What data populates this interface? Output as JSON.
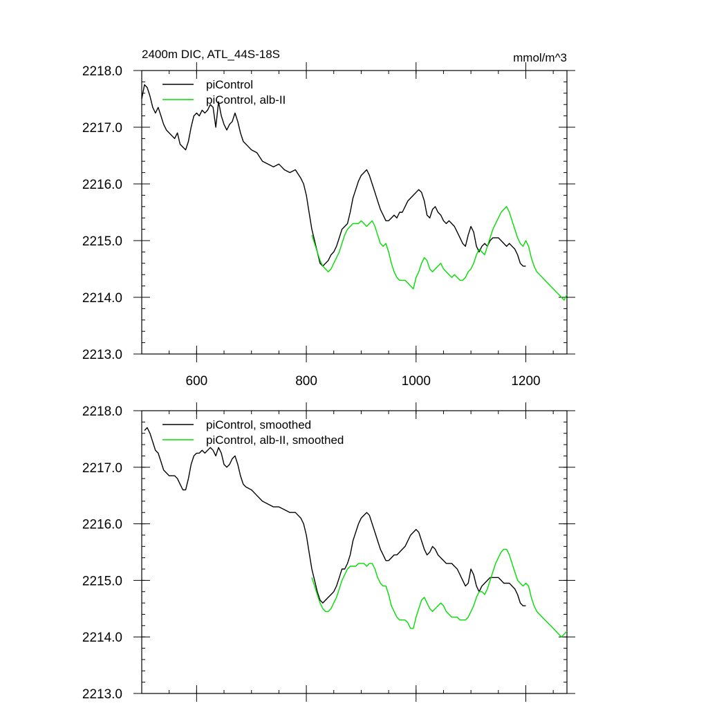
{
  "chart_data": [
    {
      "type": "line",
      "title": "2400m DIC, ATL_44S-18S",
      "units": "mmol/m^3",
      "xlim": [
        500,
        1275
      ],
      "ylim": [
        2213.0,
        2218.0
      ],
      "xticks": [
        600,
        800,
        1000,
        1200
      ],
      "xtick_labels": [
        "600",
        "800",
        "1000",
        "1200"
      ],
      "yticks": [
        2213.0,
        2214.0,
        2215.0,
        2216.0,
        2217.0,
        2218.0
      ],
      "ytick_labels": [
        "2213.0",
        "2214.0",
        "2215.0",
        "2216.0",
        "2217.0",
        "2218.0"
      ],
      "legend_position": "top-left",
      "series": [
        {
          "name": "piControl",
          "color": "#000000",
          "x": [
            500,
            505,
            510,
            515,
            520,
            525,
            530,
            535,
            540,
            545,
            550,
            555,
            560,
            565,
            570,
            575,
            580,
            585,
            590,
            595,
            600,
            605,
            610,
            615,
            620,
            625,
            630,
            635,
            640,
            645,
            650,
            655,
            660,
            665,
            670,
            675,
            680,
            685,
            690,
            695,
            700,
            710,
            720,
            730,
            740,
            750,
            760,
            770,
            780,
            790,
            795,
            800,
            805,
            810,
            815,
            820,
            825,
            830,
            835,
            840,
            845,
            850,
            855,
            860,
            865,
            870,
            875,
            880,
            885,
            890,
            895,
            900,
            905,
            910,
            915,
            920,
            925,
            930,
            935,
            940,
            945,
            950,
            955,
            960,
            965,
            970,
            975,
            980,
            985,
            990,
            995,
            1000,
            1005,
            1010,
            1015,
            1020,
            1025,
            1030,
            1035,
            1040,
            1045,
            1050,
            1055,
            1060,
            1065,
            1070,
            1075,
            1080,
            1085,
            1090,
            1095,
            1100,
            1105,
            1110,
            1115,
            1120,
            1125,
            1130,
            1135,
            1140,
            1145,
            1150,
            1155,
            1160,
            1165,
            1170,
            1175,
            1180,
            1185,
            1190,
            1195,
            1200
          ],
          "y": [
            2217.5,
            2217.75,
            2217.7,
            2217.55,
            2217.35,
            2217.25,
            2217.35,
            2217.2,
            2217.05,
            2216.95,
            2216.9,
            2216.85,
            2216.8,
            2216.9,
            2216.7,
            2216.65,
            2216.6,
            2216.75,
            2217.0,
            2217.2,
            2217.25,
            2217.2,
            2217.3,
            2217.25,
            2217.3,
            2217.4,
            2217.35,
            2217.0,
            2217.45,
            2217.2,
            2217.05,
            2216.95,
            2217.05,
            2217.1,
            2217.25,
            2217.1,
            2216.9,
            2216.75,
            2216.7,
            2216.65,
            2216.6,
            2216.55,
            2216.4,
            2216.35,
            2216.3,
            2216.35,
            2216.25,
            2216.2,
            2216.25,
            2216.1,
            2216.0,
            2215.8,
            2215.5,
            2215.2,
            2215.0,
            2214.8,
            2214.6,
            2214.55,
            2214.6,
            2214.65,
            2214.75,
            2214.8,
            2214.9,
            2215.05,
            2215.2,
            2215.25,
            2215.3,
            2215.5,
            2215.75,
            2215.9,
            2216.05,
            2216.15,
            2216.2,
            2216.25,
            2216.15,
            2216.0,
            2215.85,
            2215.7,
            2215.55,
            2215.45,
            2215.35,
            2215.35,
            2215.4,
            2215.45,
            2215.4,
            2215.5,
            2215.5,
            2215.6,
            2215.7,
            2215.75,
            2215.8,
            2215.85,
            2215.9,
            2215.85,
            2215.7,
            2215.45,
            2215.4,
            2215.55,
            2215.6,
            2215.5,
            2215.45,
            2215.35,
            2215.3,
            2215.35,
            2215.3,
            2215.25,
            2215.15,
            2215.05,
            2214.95,
            2214.9,
            2215.1,
            2215.25,
            2215.15,
            2214.9,
            2214.8,
            2214.9,
            2214.95,
            2214.9,
            2215.0,
            2215.05,
            2215.05,
            2215.05,
            2215.0,
            2214.95,
            2214.9,
            2214.95,
            2214.9,
            2214.85,
            2214.75,
            2214.6,
            2214.55,
            2214.55
          ]
        },
        {
          "name": "piControl, alb-II",
          "color": "#00dd00",
          "x": [
            810,
            815,
            820,
            825,
            830,
            835,
            840,
            845,
            850,
            855,
            860,
            865,
            870,
            875,
            880,
            885,
            890,
            895,
            900,
            905,
            910,
            915,
            920,
            925,
            930,
            935,
            940,
            945,
            950,
            955,
            960,
            965,
            970,
            975,
            980,
            985,
            990,
            995,
            1000,
            1005,
            1010,
            1015,
            1020,
            1025,
            1030,
            1035,
            1040,
            1045,
            1050,
            1055,
            1060,
            1065,
            1070,
            1075,
            1080,
            1085,
            1090,
            1095,
            1100,
            1105,
            1110,
            1115,
            1120,
            1125,
            1130,
            1135,
            1140,
            1145,
            1150,
            1155,
            1160,
            1165,
            1170,
            1175,
            1180,
            1185,
            1190,
            1195,
            1200,
            1205,
            1210,
            1215,
            1220,
            1225,
            1230,
            1235,
            1240,
            1245,
            1250,
            1255,
            1260,
            1265,
            1270,
            1275
          ],
          "y": [
            2215.1,
            2214.95,
            2214.8,
            2214.65,
            2214.55,
            2214.5,
            2214.45,
            2214.5,
            2214.6,
            2214.7,
            2214.8,
            2214.95,
            2215.1,
            2215.2,
            2215.25,
            2215.3,
            2215.3,
            2215.3,
            2215.35,
            2215.3,
            2215.25,
            2215.3,
            2215.35,
            2215.25,
            2215.1,
            2214.95,
            2214.9,
            2214.95,
            2214.8,
            2214.6,
            2214.45,
            2214.35,
            2214.3,
            2214.3,
            2214.3,
            2214.25,
            2214.2,
            2214.15,
            2214.35,
            2214.45,
            2214.6,
            2214.7,
            2214.65,
            2214.5,
            2214.45,
            2214.5,
            2214.55,
            2214.6,
            2214.5,
            2214.45,
            2214.4,
            2214.35,
            2214.4,
            2214.35,
            2214.3,
            2214.3,
            2214.35,
            2214.45,
            2214.5,
            2214.6,
            2214.75,
            2214.85,
            2214.8,
            2214.75,
            2214.9,
            2215.05,
            2215.2,
            2215.3,
            2215.4,
            2215.5,
            2215.55,
            2215.6,
            2215.5,
            2215.35,
            2215.2,
            2215.05,
            2214.95,
            2214.9,
            2215.0,
            2214.9,
            2214.7,
            2214.55,
            2214.45,
            2214.4,
            2214.35,
            2214.3,
            2214.25,
            2214.2,
            2214.15,
            2214.1,
            2214.05,
            2214.0,
            2213.95,
            2214.05
          ]
        }
      ]
    },
    {
      "type": "line",
      "xlim": [
        500,
        1275
      ],
      "ylim": [
        2213.0,
        2218.0
      ],
      "xticks": [
        600,
        800,
        1000,
        1200
      ],
      "yticks": [
        2213.0,
        2214.0,
        2215.0,
        2216.0,
        2217.0,
        2218.0
      ],
      "ytick_labels": [
        "2213.0",
        "2214.0",
        "2215.0",
        "2216.0",
        "2217.0",
        "2218.0"
      ],
      "legend_position": "top-left",
      "series": [
        {
          "name": "piControl, smoothed",
          "color": "#000000",
          "x": [
            505,
            510,
            515,
            520,
            525,
            530,
            535,
            540,
            545,
            550,
            555,
            560,
            565,
            570,
            575,
            580,
            585,
            590,
            595,
            600,
            605,
            610,
            615,
            620,
            625,
            630,
            635,
            640,
            645,
            650,
            655,
            660,
            665,
            670,
            675,
            680,
            685,
            690,
            700,
            710,
            720,
            730,
            740,
            750,
            760,
            770,
            780,
            790,
            795,
            800,
            805,
            810,
            815,
            820,
            825,
            830,
            835,
            840,
            845,
            850,
            855,
            860,
            865,
            870,
            875,
            880,
            885,
            890,
            895,
            900,
            905,
            910,
            915,
            920,
            925,
            930,
            935,
            940,
            945,
            950,
            955,
            960,
            965,
            970,
            975,
            980,
            985,
            990,
            995,
            1000,
            1005,
            1010,
            1015,
            1020,
            1025,
            1030,
            1035,
            1040,
            1045,
            1050,
            1055,
            1060,
            1065,
            1070,
            1075,
            1080,
            1085,
            1090,
            1095,
            1100,
            1105,
            1110,
            1115,
            1120,
            1125,
            1130,
            1135,
            1140,
            1145,
            1150,
            1155,
            1160,
            1165,
            1170,
            1175,
            1180,
            1185,
            1190,
            1195,
            1200
          ],
          "y": [
            2217.65,
            2217.7,
            2217.6,
            2217.45,
            2217.3,
            2217.25,
            2217.1,
            2216.95,
            2216.9,
            2216.85,
            2216.85,
            2216.85,
            2216.8,
            2216.7,
            2216.6,
            2216.6,
            2216.8,
            2217.05,
            2217.2,
            2217.25,
            2217.25,
            2217.3,
            2217.25,
            2217.3,
            2217.35,
            2217.3,
            2217.2,
            2217.35,
            2217.25,
            2217.05,
            2217.0,
            2217.05,
            2217.15,
            2217.2,
            2217.05,
            2216.85,
            2216.7,
            2216.65,
            2216.6,
            2216.5,
            2216.4,
            2216.35,
            2216.3,
            2216.3,
            2216.25,
            2216.2,
            2216.2,
            2216.1,
            2216.0,
            2215.8,
            2215.5,
            2215.2,
            2215.0,
            2214.8,
            2214.65,
            2214.6,
            2214.65,
            2214.7,
            2214.75,
            2214.8,
            2214.9,
            2215.05,
            2215.2,
            2215.2,
            2215.3,
            2215.45,
            2215.7,
            2215.85,
            2216.0,
            2216.1,
            2216.15,
            2216.2,
            2216.15,
            2216.0,
            2215.85,
            2215.7,
            2215.55,
            2215.45,
            2215.35,
            2215.35,
            2215.4,
            2215.45,
            2215.45,
            2215.5,
            2215.55,
            2215.6,
            2215.7,
            2215.8,
            2215.85,
            2215.9,
            2215.85,
            2215.7,
            2215.55,
            2215.45,
            2215.5,
            2215.6,
            2215.55,
            2215.45,
            2215.4,
            2215.35,
            2215.3,
            2215.3,
            2215.3,
            2215.25,
            2215.2,
            2215.1,
            2215.0,
            2214.9,
            2214.95,
            2215.2,
            2215.1,
            2214.9,
            2214.8,
            2214.9,
            2214.95,
            2215.0,
            2215.05,
            2215.05,
            2215.05,
            2215.05,
            2215.0,
            2214.95,
            2214.95,
            2214.95,
            2214.9,
            2214.85,
            2214.75,
            2214.6,
            2214.55,
            2214.55
          ]
        },
        {
          "name": "piControl, alb-II, smoothed",
          "color": "#00dd00",
          "x": [
            810,
            815,
            820,
            825,
            830,
            835,
            840,
            845,
            850,
            855,
            860,
            865,
            870,
            875,
            880,
            885,
            890,
            895,
            900,
            905,
            910,
            915,
            920,
            925,
            930,
            935,
            940,
            945,
            950,
            955,
            960,
            965,
            970,
            975,
            980,
            985,
            990,
            995,
            1000,
            1005,
            1010,
            1015,
            1020,
            1025,
            1030,
            1035,
            1040,
            1045,
            1050,
            1055,
            1060,
            1065,
            1070,
            1075,
            1080,
            1085,
            1090,
            1095,
            1100,
            1105,
            1110,
            1115,
            1120,
            1125,
            1130,
            1135,
            1140,
            1145,
            1150,
            1155,
            1160,
            1165,
            1170,
            1175,
            1180,
            1185,
            1190,
            1195,
            1200,
            1205,
            1210,
            1215,
            1220,
            1225,
            1230,
            1235,
            1240,
            1245,
            1250,
            1255,
            1260,
            1265,
            1270,
            1275
          ],
          "y": [
            2215.05,
            2214.9,
            2214.75,
            2214.6,
            2214.5,
            2214.45,
            2214.45,
            2214.5,
            2214.6,
            2214.7,
            2214.85,
            2215.0,
            2215.1,
            2215.2,
            2215.25,
            2215.25,
            2215.25,
            2215.3,
            2215.3,
            2215.3,
            2215.25,
            2215.3,
            2215.3,
            2215.2,
            2215.05,
            2214.95,
            2214.9,
            2214.9,
            2214.75,
            2214.55,
            2214.45,
            2214.35,
            2214.3,
            2214.3,
            2214.3,
            2214.25,
            2214.15,
            2214.15,
            2214.35,
            2214.5,
            2214.65,
            2214.7,
            2214.6,
            2214.5,
            2214.45,
            2214.5,
            2214.55,
            2214.6,
            2214.55,
            2214.45,
            2214.4,
            2214.35,
            2214.35,
            2214.35,
            2214.3,
            2214.3,
            2214.3,
            2214.35,
            2214.45,
            2214.55,
            2214.7,
            2214.8,
            2214.8,
            2214.75,
            2214.85,
            2215.0,
            2215.15,
            2215.3,
            2215.4,
            2215.5,
            2215.55,
            2215.55,
            2215.45,
            2215.3,
            2215.15,
            2215.0,
            2214.95,
            2214.9,
            2214.95,
            2214.9,
            2214.7,
            2214.55,
            2214.45,
            2214.4,
            2214.35,
            2214.3,
            2214.25,
            2214.2,
            2214.15,
            2214.1,
            2214.05,
            2214.0,
            2214.05,
            2214.1
          ]
        }
      ]
    }
  ]
}
